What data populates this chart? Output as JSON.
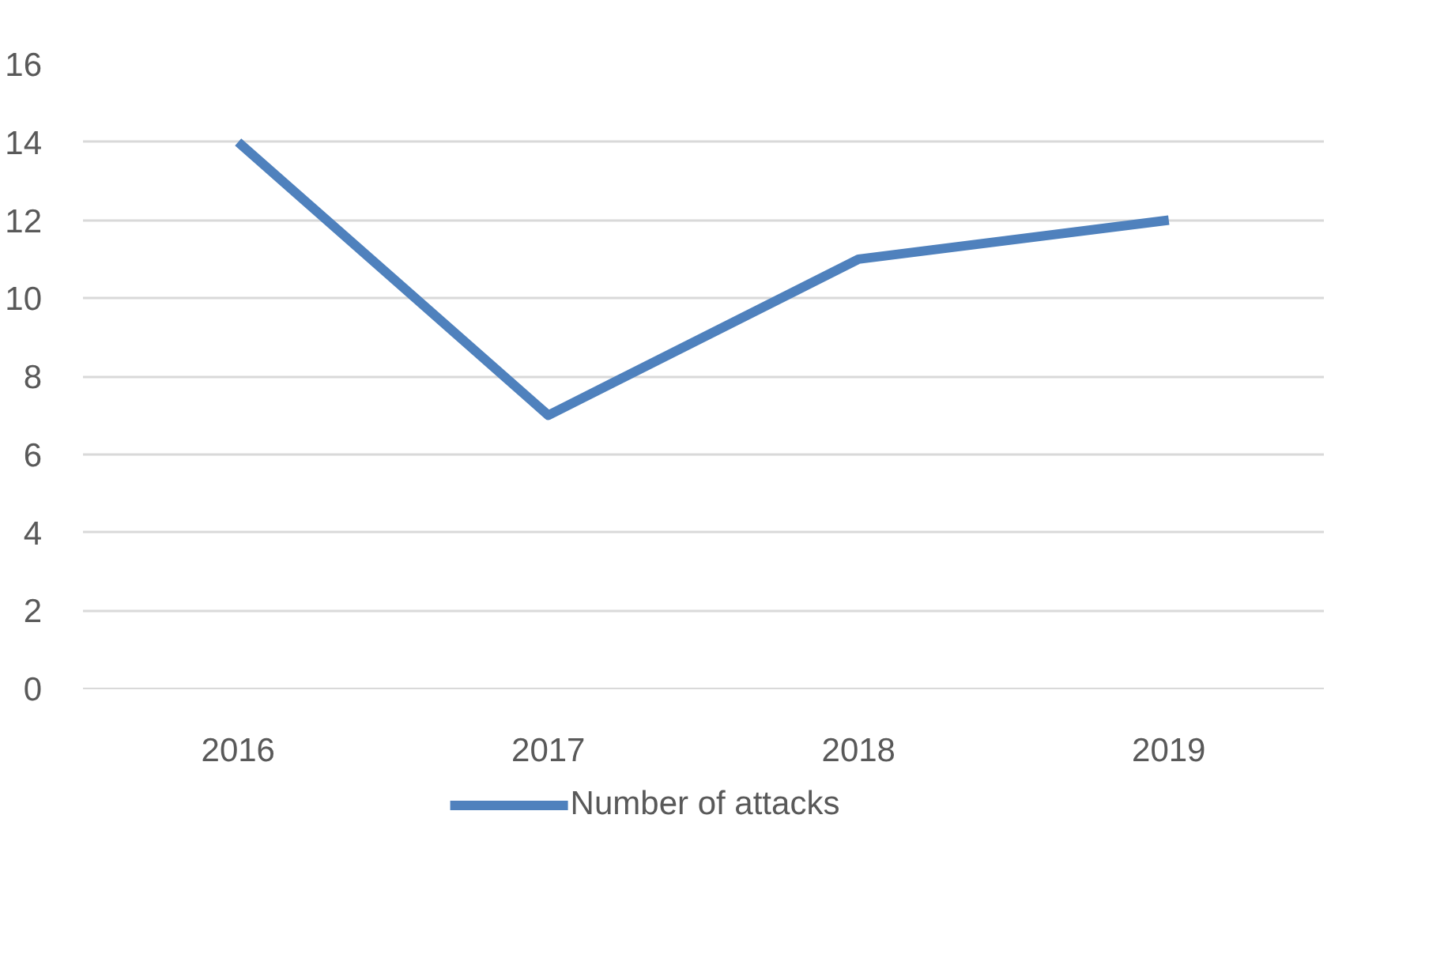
{
  "chart_data": {
    "type": "line",
    "categories": [
      "2016",
      "2017",
      "2018",
      "2019"
    ],
    "series": [
      {
        "name": "Number of attacks",
        "color": "#4f81bd",
        "values": [
          14,
          7,
          11,
          12
        ]
      }
    ],
    "ylim": [
      0,
      16
    ],
    "yticks": [
      0,
      2,
      4,
      6,
      8,
      10,
      12,
      14,
      16
    ],
    "grid": "y",
    "legend": "bottom",
    "line_style": "solid",
    "marker": "none"
  }
}
